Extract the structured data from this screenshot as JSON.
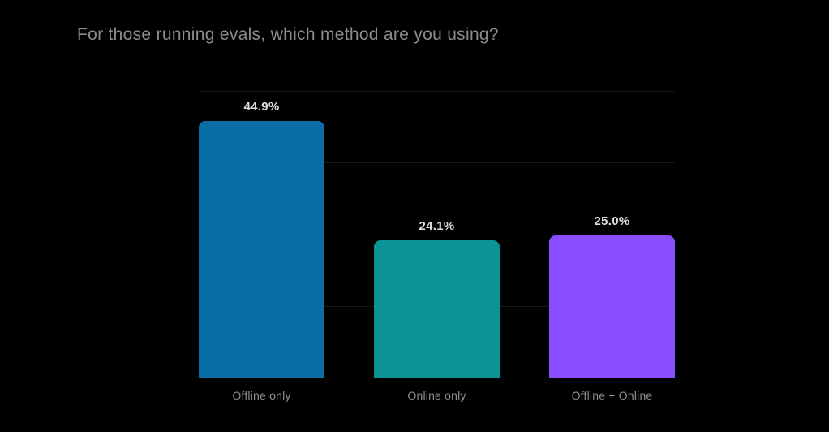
{
  "chart": {
    "title": "For those running evals, which method are you using?"
  },
  "colors": {
    "background": "#000000",
    "title_text": "#8c8c8c",
    "value_label_text": "#dedede",
    "tick_label_text": "#8f8f8f",
    "gridline": "#171717"
  },
  "chart_data": {
    "type": "bar",
    "title": "For those running evals, which method are you using?",
    "categories": [
      "Offline only",
      "Online only",
      "Offline + Online"
    ],
    "values": [
      44.9,
      24.1,
      25.0
    ],
    "value_labels": [
      "44.9%",
      "24.1%",
      "25.0%"
    ],
    "bar_colors": [
      "#0b6da6",
      "#0a9594",
      "#8a4dff"
    ],
    "bar_slugs": [
      "offline-only",
      "online-only",
      "offline-plus-online"
    ],
    "xlabel": "",
    "ylabel": "",
    "ylim": [
      0,
      50
    ],
    "gridline_values": [
      12.5,
      25,
      37.5,
      50
    ],
    "grid": "horizontal-only",
    "legend_position": "none",
    "y_tick_labels_visible": false
  }
}
